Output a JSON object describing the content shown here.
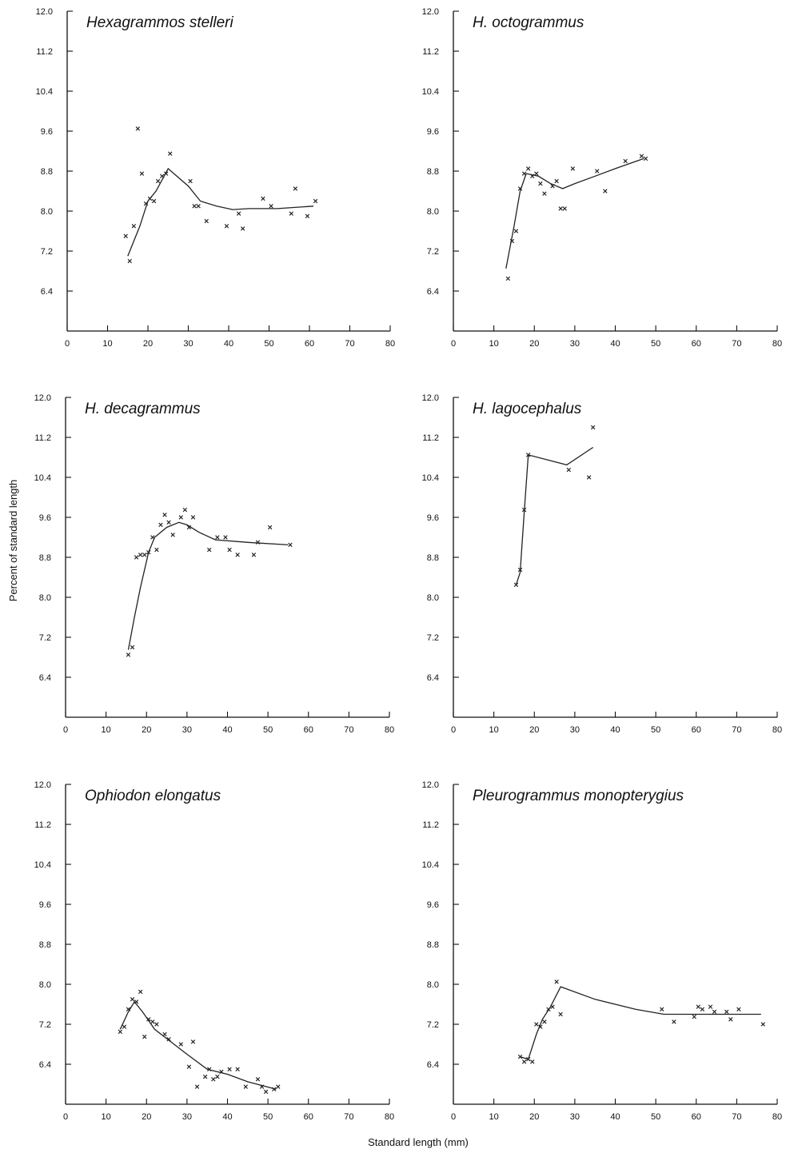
{
  "figure": {
    "ylabel": "Percent of standard length",
    "xlabel": "Standard length (mm)"
  },
  "chart_data": [
    {
      "type": "scatter",
      "title": "Hexagrammos stelleri",
      "xlim": [
        0,
        80
      ],
      "ylim": [
        5.6,
        12.0
      ],
      "x_ticks": [
        0,
        10,
        20,
        30,
        40,
        50,
        60,
        70,
        80
      ],
      "y_ticks": [
        "12.0",
        "11.2",
        "10.4",
        "9.6",
        "8.8",
        "8.0",
        "7.2",
        "6.4"
      ],
      "points": [
        [
          14.5,
          7.5
        ],
        [
          15.5,
          7.0
        ],
        [
          16.5,
          7.7
        ],
        [
          17.5,
          9.65
        ],
        [
          18.5,
          8.75
        ],
        [
          19.5,
          8.15
        ],
        [
          20.5,
          8.25
        ],
        [
          21.5,
          8.2
        ],
        [
          22.5,
          8.6
        ],
        [
          23.5,
          8.7
        ],
        [
          24.5,
          8.75
        ],
        [
          25.5,
          9.15
        ],
        [
          30.5,
          8.6
        ],
        [
          31.5,
          8.1
        ],
        [
          32.5,
          8.1
        ],
        [
          34.5,
          7.8
        ],
        [
          39.5,
          7.7
        ],
        [
          42.5,
          7.95
        ],
        [
          43.5,
          7.65
        ],
        [
          48.5,
          8.25
        ],
        [
          50.5,
          8.1
        ],
        [
          55.5,
          7.95
        ],
        [
          56.5,
          8.45
        ],
        [
          59.5,
          7.9
        ],
        [
          61.5,
          8.2
        ]
      ],
      "fit_line": [
        [
          15,
          7.1
        ],
        [
          18,
          7.7
        ],
        [
          20,
          8.2
        ],
        [
          22,
          8.4
        ],
        [
          25,
          8.85
        ],
        [
          30,
          8.5
        ],
        [
          33,
          8.2
        ],
        [
          37,
          8.1
        ],
        [
          41,
          8.03
        ],
        [
          45,
          8.05
        ],
        [
          52,
          8.05
        ],
        [
          61,
          8.1
        ]
      ]
    },
    {
      "type": "scatter",
      "title": "H. octogrammus",
      "xlim": [
        0,
        80
      ],
      "ylim": [
        5.6,
        12.0
      ],
      "x_ticks": [
        0,
        10,
        20,
        30,
        40,
        50,
        60,
        70,
        80
      ],
      "y_ticks": [
        "12.0",
        "11.2",
        "10.4",
        "9.6",
        "8.8",
        "8.0",
        "7.2",
        "6.4"
      ],
      "points": [
        [
          13.5,
          6.65
        ],
        [
          14.5,
          7.4
        ],
        [
          15.5,
          7.6
        ],
        [
          16.5,
          8.45
        ],
        [
          17.5,
          8.75
        ],
        [
          18.5,
          8.85
        ],
        [
          19.5,
          8.7
        ],
        [
          20.5,
          8.75
        ],
        [
          21.5,
          8.55
        ],
        [
          22.5,
          8.35
        ],
        [
          24.5,
          8.5
        ],
        [
          25.5,
          8.6
        ],
        [
          26.5,
          8.05
        ],
        [
          27.5,
          8.05
        ],
        [
          29.5,
          8.85
        ],
        [
          35.5,
          8.8
        ],
        [
          37.5,
          8.4
        ],
        [
          42.5,
          9.0
        ],
        [
          46.5,
          9.1
        ],
        [
          47.5,
          9.05
        ]
      ],
      "fit_line": [
        [
          13,
          6.85
        ],
        [
          15,
          7.7
        ],
        [
          16.5,
          8.4
        ],
        [
          18,
          8.75
        ],
        [
          21,
          8.7
        ],
        [
          24,
          8.55
        ],
        [
          27,
          8.45
        ],
        [
          30,
          8.55
        ],
        [
          35,
          8.7
        ],
        [
          40,
          8.85
        ],
        [
          47,
          9.05
        ]
      ]
    },
    {
      "type": "scatter",
      "title": "H. decagrammus",
      "xlim": [
        0,
        80
      ],
      "ylim": [
        5.6,
        12.0
      ],
      "x_ticks": [
        0,
        10,
        20,
        30,
        40,
        50,
        60,
        70,
        80
      ],
      "y_ticks": [
        "12.0",
        "11.2",
        "10.4",
        "9.6",
        "8.8",
        "8.0",
        "7.2",
        "6.4"
      ],
      "points": [
        [
          15.5,
          6.85
        ],
        [
          16.5,
          7.0
        ],
        [
          17.5,
          8.8
        ],
        [
          18.5,
          8.85
        ],
        [
          19.5,
          8.85
        ],
        [
          20.5,
          8.9
        ],
        [
          21.5,
          9.2
        ],
        [
          22.5,
          8.95
        ],
        [
          23.5,
          9.45
        ],
        [
          24.5,
          9.65
        ],
        [
          25.5,
          9.5
        ],
        [
          26.5,
          9.25
        ],
        [
          28.5,
          9.6
        ],
        [
          29.5,
          9.75
        ],
        [
          30.5,
          9.4
        ],
        [
          31.5,
          9.6
        ],
        [
          35.5,
          8.95
        ],
        [
          37.5,
          9.2
        ],
        [
          39.5,
          9.2
        ],
        [
          40.5,
          8.95
        ],
        [
          42.5,
          8.85
        ],
        [
          46.5,
          8.85
        ],
        [
          47.5,
          9.1
        ],
        [
          50.5,
          9.4
        ],
        [
          55.5,
          9.05
        ]
      ],
      "fit_line": [
        [
          15.5,
          6.95
        ],
        [
          17,
          7.6
        ],
        [
          18.5,
          8.2
        ],
        [
          20.5,
          8.9
        ],
        [
          22,
          9.2
        ],
        [
          25,
          9.4
        ],
        [
          28,
          9.5
        ],
        [
          30,
          9.45
        ],
        [
          33,
          9.3
        ],
        [
          37,
          9.15
        ],
        [
          45,
          9.1
        ],
        [
          55,
          9.05
        ]
      ]
    },
    {
      "type": "scatter",
      "title": "H. lagocephalus",
      "xlim": [
        0,
        80
      ],
      "ylim": [
        5.6,
        12.0
      ],
      "x_ticks": [
        0,
        10,
        20,
        30,
        40,
        50,
        60,
        70,
        80
      ],
      "y_ticks": [
        "12.0",
        "11.2",
        "10.4",
        "9.6",
        "8.8",
        "8.0",
        "7.2",
        "6.4"
      ],
      "points": [
        [
          15.5,
          8.25
        ],
        [
          16.5,
          8.55
        ],
        [
          17.5,
          9.75
        ],
        [
          18.5,
          10.85
        ],
        [
          28.5,
          10.55
        ],
        [
          33.5,
          10.4
        ],
        [
          34.5,
          11.4
        ]
      ],
      "fit_line": [
        [
          15.5,
          8.25
        ],
        [
          16.5,
          8.5
        ],
        [
          17.5,
          9.7
        ],
        [
          18.5,
          10.85
        ],
        [
          28,
          10.65
        ],
        [
          34.5,
          11.0
        ]
      ]
    },
    {
      "type": "scatter",
      "title": "Ophiodon elongatus",
      "xlim": [
        0,
        80
      ],
      "ylim": [
        5.6,
        12.0
      ],
      "x_ticks": [
        0,
        10,
        20,
        30,
        40,
        50,
        60,
        70,
        80
      ],
      "y_ticks": [
        "12.0",
        "11.2",
        "10.4",
        "9.6",
        "8.8",
        "8.0",
        "7.2",
        "6.4"
      ],
      "points": [
        [
          13.5,
          7.05
        ],
        [
          14.5,
          7.15
        ],
        [
          15.5,
          7.5
        ],
        [
          16.5,
          7.7
        ],
        [
          17.5,
          7.65
        ],
        [
          18.5,
          7.85
        ],
        [
          19.5,
          6.95
        ],
        [
          20.5,
          7.3
        ],
        [
          21.5,
          7.25
        ],
        [
          22.5,
          7.2
        ],
        [
          24.5,
          7.0
        ],
        [
          25.5,
          6.9
        ],
        [
          28.5,
          6.8
        ],
        [
          30.5,
          6.35
        ],
        [
          31.5,
          6.85
        ],
        [
          32.5,
          5.95
        ],
        [
          34.5,
          6.15
        ],
        [
          35.5,
          6.3
        ],
        [
          36.5,
          6.1
        ],
        [
          37.5,
          6.15
        ],
        [
          38.5,
          6.25
        ],
        [
          40.5,
          6.3
        ],
        [
          42.5,
          6.3
        ],
        [
          44.5,
          5.95
        ],
        [
          47.5,
          6.1
        ],
        [
          48.5,
          5.95
        ],
        [
          49.5,
          5.85
        ],
        [
          51.5,
          5.9
        ],
        [
          52.5,
          5.95
        ]
      ],
      "fit_line": [
        [
          13.5,
          7.1
        ],
        [
          15.5,
          7.45
        ],
        [
          17,
          7.65
        ],
        [
          19,
          7.45
        ],
        [
          22,
          7.1
        ],
        [
          26,
          6.85
        ],
        [
          30,
          6.6
        ],
        [
          35,
          6.3
        ],
        [
          40,
          6.2
        ],
        [
          45,
          6.05
        ],
        [
          52,
          5.9
        ]
      ]
    },
    {
      "type": "scatter",
      "title": "Pleurogrammus monopterygius",
      "xlim": [
        0,
        80
      ],
      "ylim": [
        5.6,
        12.0
      ],
      "x_ticks": [
        0,
        10,
        20,
        30,
        40,
        50,
        60,
        70,
        80
      ],
      "y_ticks": [
        "12.0",
        "11.2",
        "10.4",
        "9.6",
        "8.8",
        "8.0",
        "7.2",
        "6.4"
      ],
      "points": [
        [
          16.5,
          6.55
        ],
        [
          17.5,
          6.45
        ],
        [
          18.5,
          6.5
        ],
        [
          19.5,
          6.45
        ],
        [
          20.5,
          7.2
        ],
        [
          21.5,
          7.15
        ],
        [
          22.5,
          7.25
        ],
        [
          23.5,
          7.5
        ],
        [
          24.5,
          7.55
        ],
        [
          25.5,
          8.05
        ],
        [
          26.5,
          7.4
        ],
        [
          51.5,
          7.5
        ],
        [
          54.5,
          7.25
        ],
        [
          59.5,
          7.35
        ],
        [
          60.5,
          7.55
        ],
        [
          61.5,
          7.5
        ],
        [
          63.5,
          7.55
        ],
        [
          64.5,
          7.45
        ],
        [
          67.5,
          7.45
        ],
        [
          68.5,
          7.3
        ],
        [
          70.5,
          7.5
        ],
        [
          76.5,
          7.2
        ]
      ],
      "fit_line": [
        [
          16.5,
          6.55
        ],
        [
          18.5,
          6.5
        ],
        [
          20.5,
          7.0
        ],
        [
          22,
          7.3
        ],
        [
          24,
          7.55
        ],
        [
          26.5,
          7.95
        ],
        [
          35,
          7.7
        ],
        [
          45,
          7.5
        ],
        [
          52,
          7.4
        ],
        [
          60,
          7.4
        ],
        [
          76,
          7.4
        ]
      ]
    }
  ]
}
